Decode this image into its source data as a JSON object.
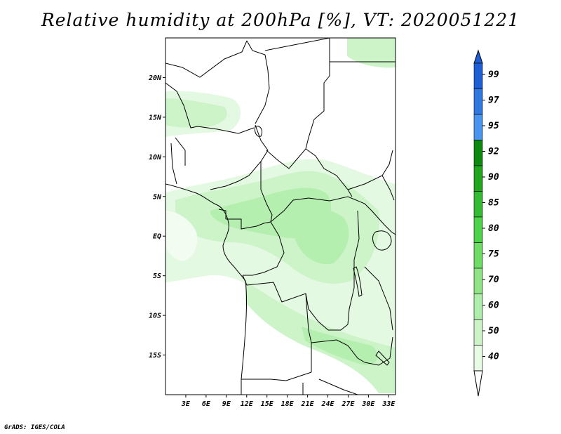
{
  "title": "Relative humidity at 200hPa [%], VT: 2020051221",
  "credit": "GrADS: IGES/COLA",
  "lat_ticks": [
    "20N",
    "15N",
    "10N",
    "5N",
    "EQ",
    "5S",
    "10S",
    "15S"
  ],
  "lat_values": [
    20,
    15,
    10,
    5,
    0,
    -5,
    -10,
    -15
  ],
  "lon_ticks": [
    "3E",
    "6E",
    "9E",
    "12E",
    "15E",
    "18E",
    "21E",
    "24E",
    "27E",
    "30E",
    "33E"
  ],
  "lon_values": [
    3,
    6,
    9,
    12,
    15,
    18,
    21,
    24,
    27,
    30,
    33
  ],
  "map_extent": {
    "lon_min": 0,
    "lon_max": 34,
    "lat_min": -20,
    "lat_max": 25
  },
  "colorbar": {
    "labels": [
      "99",
      "97",
      "95",
      "92",
      "90",
      "85",
      "80",
      "75",
      "70",
      "60",
      "50",
      "40"
    ],
    "colors": [
      "#1e5fd6",
      "#2f78e2",
      "#4a96ee",
      "#0f8a10",
      "#22a61e",
      "#34bb33",
      "#50d24b",
      "#6fdc66",
      "#90e485",
      "#afedab",
      "#cdf4c9",
      "#e8fbe5"
    ],
    "top_color": "#1e5fd6"
  }
}
